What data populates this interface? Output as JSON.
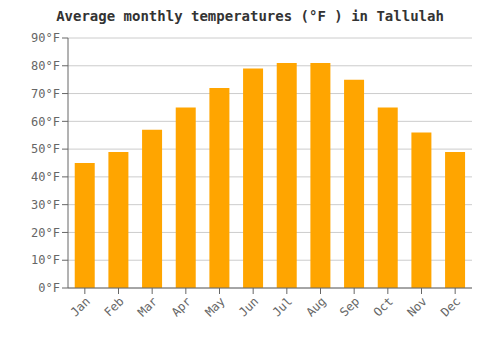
{
  "chart_data": {
    "type": "bar",
    "title": "Average monthly temperatures (°F ) in Tallulah",
    "categories": [
      "Jan",
      "Feb",
      "Mar",
      "Apr",
      "May",
      "Jun",
      "Jul",
      "Aug",
      "Sep",
      "Oct",
      "Nov",
      "Dec"
    ],
    "values": [
      45,
      49,
      57,
      65,
      72,
      79,
      81,
      81,
      75,
      65,
      56,
      49
    ],
    "color": "#FFA500",
    "ylim": [
      0,
      90
    ],
    "yticks": [
      {
        "value": 0,
        "label": "0°F"
      },
      {
        "value": 10,
        "label": "10°F"
      },
      {
        "value": 20,
        "label": "20°F"
      },
      {
        "value": 30,
        "label": "30°F"
      },
      {
        "value": 40,
        "label": "40°F"
      },
      {
        "value": 50,
        "label": "50°F"
      },
      {
        "value": 60,
        "label": "60°F"
      },
      {
        "value": 70,
        "label": "70°F"
      },
      {
        "value": 80,
        "label": "80°F"
      },
      {
        "value": 90,
        "label": "90°F"
      }
    ],
    "grid": true
  }
}
